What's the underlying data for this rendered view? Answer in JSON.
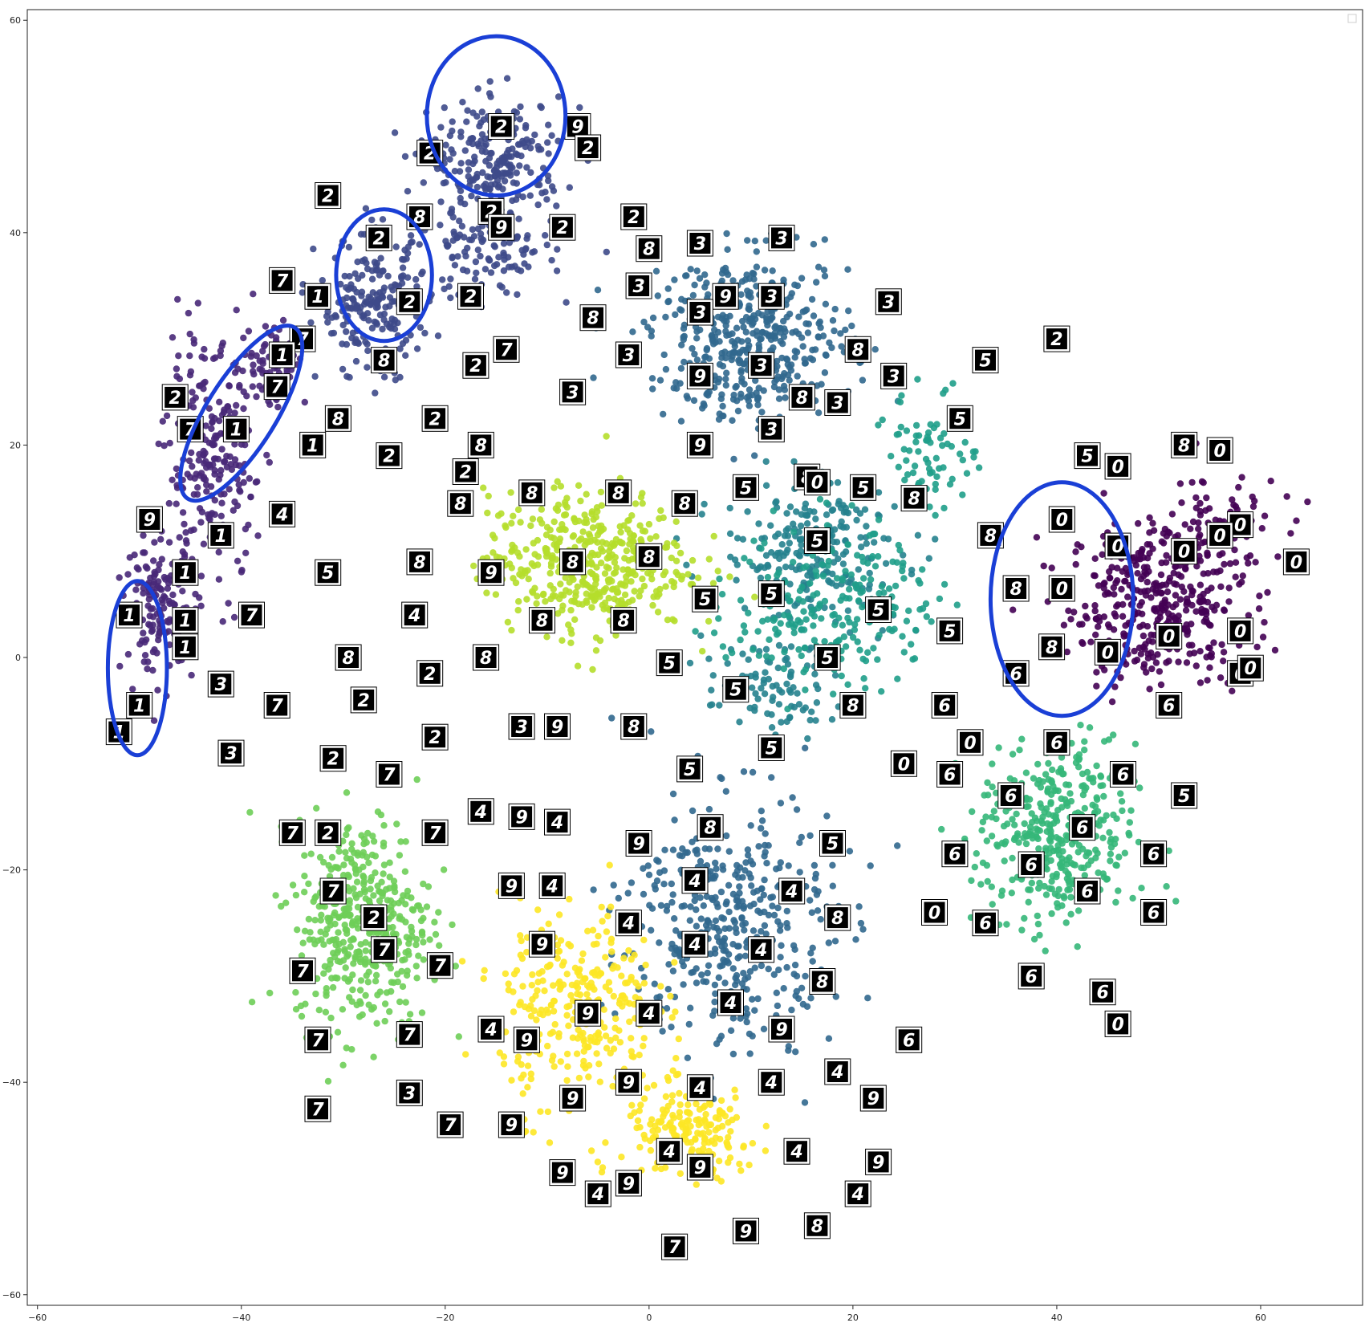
{
  "chart_data": {
    "type": "scatter",
    "title": "",
    "xlabel": "",
    "ylabel": "",
    "xlim": [
      -61,
      70
    ],
    "ylim": [
      -61,
      61
    ],
    "grid": false,
    "legend": "top-right (empty)",
    "xticks": [
      -60,
      -40,
      -20,
      0,
      20,
      40,
      60
    ],
    "yticks": [
      -60,
      -40,
      -20,
      0,
      20,
      40,
      60
    ],
    "xtick_labels": [
      "−60",
      "−40",
      "−20",
      "0",
      "20",
      "40",
      "60"
    ],
    "ytick_labels": [
      "−60",
      "−40",
      "−20",
      "0",
      "20",
      "40",
      "60"
    ],
    "colormap": [
      "#440154",
      "#482878",
      "#3e4a89",
      "#31688e",
      "#26828e",
      "#1f9e89",
      "#35b779",
      "#6ece58",
      "#b5de2b",
      "#fde725"
    ],
    "series": [
      {
        "color": "#440154",
        "clusters": [
          {
            "x": 50,
            "y": 5,
            "sx": 8,
            "sy": 7,
            "n": 380
          },
          {
            "x": 55,
            "y": 12,
            "sx": 6,
            "sy": 5,
            "n": 90
          }
        ]
      },
      {
        "color": "#482878",
        "clusters": [
          {
            "x": -43,
            "y": 18,
            "sx": 4,
            "sy": 10,
            "n": 230
          },
          {
            "x": -48,
            "y": 5,
            "sx": 3,
            "sy": 6,
            "n": 140
          },
          {
            "x": -37,
            "y": 28,
            "sx": 3,
            "sy": 4,
            "n": 70
          }
        ]
      },
      {
        "color": "#3e4a89",
        "clusters": [
          {
            "x": -15,
            "y": 47,
            "sx": 6,
            "sy": 5,
            "n": 230
          },
          {
            "x": -27,
            "y": 33,
            "sx": 5,
            "sy": 6,
            "n": 210
          },
          {
            "x": -16,
            "y": 38,
            "sx": 6,
            "sy": 4,
            "n": 110
          }
        ]
      },
      {
        "color": "#31688e",
        "clusters": [
          {
            "x": 10,
            "y": 30,
            "sx": 9,
            "sy": 7,
            "n": 440
          },
          {
            "x": 8,
            "y": -25,
            "sx": 9,
            "sy": 11,
            "n": 430
          }
        ]
      },
      {
        "color": "#26828e",
        "clusters": [
          {
            "x": 16,
            "y": 10,
            "sx": 8,
            "sy": 6,
            "n": 240
          },
          {
            "x": 12,
            "y": -3,
            "sx": 6,
            "sy": 4,
            "n": 90
          }
        ]
      },
      {
        "color": "#1f9e89",
        "clusters": [
          {
            "x": 18,
            "y": 5,
            "sx": 9,
            "sy": 7,
            "n": 230
          },
          {
            "x": 28,
            "y": 20,
            "sx": 4,
            "sy": 5,
            "n": 70
          }
        ]
      },
      {
        "color": "#35b779",
        "clusters": [
          {
            "x": 40,
            "y": -17,
            "sx": 7,
            "sy": 8,
            "n": 400
          }
        ]
      },
      {
        "color": "#6ece58",
        "clusters": [
          {
            "x": -28,
            "y": -25,
            "sx": 6,
            "sy": 9,
            "n": 440
          }
        ]
      },
      {
        "color": "#b5de2b",
        "clusters": [
          {
            "x": -6,
            "y": 9,
            "sx": 9,
            "sy": 6,
            "n": 450
          }
        ]
      },
      {
        "color": "#fde725",
        "clusters": [
          {
            "x": -7,
            "y": -33,
            "sx": 7,
            "sy": 9,
            "n": 300
          },
          {
            "x": 4,
            "y": -45,
            "sx": 6,
            "sy": 4,
            "n": 180
          }
        ]
      }
    ],
    "thumbnails": [
      {
        "x": -21.5,
        "y": 47.5,
        "label": "2"
      },
      {
        "x": -14.5,
        "y": 50,
        "label": "2"
      },
      {
        "x": -7,
        "y": 50,
        "label": "9"
      },
      {
        "x": -6,
        "y": 48,
        "label": "2"
      },
      {
        "x": -31.5,
        "y": 43.5,
        "label": "2"
      },
      {
        "x": -22.5,
        "y": 41.5,
        "label": "8"
      },
      {
        "x": -15.5,
        "y": 42,
        "label": "2"
      },
      {
        "x": -14.5,
        "y": 40.5,
        "label": "9"
      },
      {
        "x": -8.5,
        "y": 40.5,
        "label": "2"
      },
      {
        "x": -1.5,
        "y": 41.5,
        "label": "2"
      },
      {
        "x": -26.5,
        "y": 39.5,
        "label": "2"
      },
      {
        "x": -23.5,
        "y": 33.5,
        "label": "2"
      },
      {
        "x": -17.5,
        "y": 34,
        "label": "2"
      },
      {
        "x": -36,
        "y": 35.5,
        "label": "7"
      },
      {
        "x": -32.5,
        "y": 34,
        "label": "1"
      },
      {
        "x": -34,
        "y": 30,
        "label": "7"
      },
      {
        "x": -36,
        "y": 28.5,
        "label": "1"
      },
      {
        "x": -36.5,
        "y": 25.5,
        "label": "7"
      },
      {
        "x": -26,
        "y": 28,
        "label": "8"
      },
      {
        "x": -17,
        "y": 27.5,
        "label": "2"
      },
      {
        "x": -14,
        "y": 29,
        "label": "7"
      },
      {
        "x": -46.5,
        "y": 24.5,
        "label": "2"
      },
      {
        "x": -45,
        "y": 21.5,
        "label": "7"
      },
      {
        "x": -40.5,
        "y": 21.5,
        "label": "1"
      },
      {
        "x": -33,
        "y": 20,
        "label": "1"
      },
      {
        "x": -30.5,
        "y": 22.5,
        "label": "8"
      },
      {
        "x": -25.5,
        "y": 19,
        "label": "2"
      },
      {
        "x": -21,
        "y": 22.5,
        "label": "2"
      },
      {
        "x": -49,
        "y": 13,
        "label": "9"
      },
      {
        "x": -42,
        "y": 11.5,
        "label": "1"
      },
      {
        "x": -36,
        "y": 13.5,
        "label": "4"
      },
      {
        "x": -45.5,
        "y": 8,
        "label": "1"
      },
      {
        "x": -31.5,
        "y": 8,
        "label": "5"
      },
      {
        "x": -51,
        "y": 4,
        "label": "1"
      },
      {
        "x": -45.5,
        "y": 3.5,
        "label": "1"
      },
      {
        "x": -45.5,
        "y": 1,
        "label": "1"
      },
      {
        "x": -39,
        "y": 4,
        "label": "7"
      },
      {
        "x": -42,
        "y": -2.5,
        "label": "3"
      },
      {
        "x": -36.5,
        "y": -4.5,
        "label": "7"
      },
      {
        "x": -50,
        "y": -4.5,
        "label": "1"
      },
      {
        "x": -52,
        "y": -7,
        "label": "1"
      },
      {
        "x": -41,
        "y": -9,
        "label": "3"
      },
      {
        "x": -29.5,
        "y": 0,
        "label": "8"
      },
      {
        "x": -28,
        "y": -4,
        "label": "2"
      },
      {
        "x": -16.5,
        "y": 20,
        "label": "8"
      },
      {
        "x": -18,
        "y": 17.5,
        "label": "2"
      },
      {
        "x": -18.5,
        "y": 14.5,
        "label": "8"
      },
      {
        "x": -11.5,
        "y": 15.5,
        "label": "8"
      },
      {
        "x": -3,
        "y": 15.5,
        "label": "8"
      },
      {
        "x": 3.5,
        "y": 14.5,
        "label": "8"
      },
      {
        "x": -22.5,
        "y": 9,
        "label": "8"
      },
      {
        "x": -15.5,
        "y": 8,
        "label": "9"
      },
      {
        "x": -7.5,
        "y": 9,
        "label": "8"
      },
      {
        "x": 0,
        "y": 9.5,
        "label": "8"
      },
      {
        "x": -23,
        "y": 4,
        "label": "4"
      },
      {
        "x": -10.5,
        "y": 3.5,
        "label": "8"
      },
      {
        "x": -2.5,
        "y": 3.5,
        "label": "8"
      },
      {
        "x": -16,
        "y": 0,
        "label": "8"
      },
      {
        "x": -21.5,
        "y": -1.5,
        "label": "2"
      },
      {
        "x": -12.5,
        "y": -6.5,
        "label": "3"
      },
      {
        "x": -9,
        "y": -6.5,
        "label": "9"
      },
      {
        "x": -21,
        "y": -7.5,
        "label": "2"
      },
      {
        "x": -31,
        "y": -9.5,
        "label": "2"
      },
      {
        "x": -7.5,
        "y": 25,
        "label": "3"
      },
      {
        "x": -5.5,
        "y": 32,
        "label": "8"
      },
      {
        "x": -2,
        "y": 28.5,
        "label": "3"
      },
      {
        "x": -1,
        "y": 35,
        "label": "3"
      },
      {
        "x": 0,
        "y": 38.5,
        "label": "8"
      },
      {
        "x": 5,
        "y": 39,
        "label": "3"
      },
      {
        "x": 13,
        "y": 39.5,
        "label": "3"
      },
      {
        "x": 7.5,
        "y": 34,
        "label": "9"
      },
      {
        "x": 12,
        "y": 34,
        "label": "3"
      },
      {
        "x": 5,
        "y": 32.5,
        "label": "3"
      },
      {
        "x": 5,
        "y": 26.5,
        "label": "9"
      },
      {
        "x": 11,
        "y": 27.5,
        "label": "3"
      },
      {
        "x": 23.5,
        "y": 33.5,
        "label": "3"
      },
      {
        "x": 20.5,
        "y": 29,
        "label": "8"
      },
      {
        "x": 24,
        "y": 26.5,
        "label": "3"
      },
      {
        "x": 15,
        "y": 24.5,
        "label": "8"
      },
      {
        "x": 18.5,
        "y": 24,
        "label": "3"
      },
      {
        "x": 12,
        "y": 21.5,
        "label": "3"
      },
      {
        "x": 5,
        "y": 20,
        "label": "9"
      },
      {
        "x": 9.5,
        "y": 16,
        "label": "5"
      },
      {
        "x": 15.5,
        "y": 17,
        "label": "8"
      },
      {
        "x": 16.5,
        "y": 16.5,
        "label": "0"
      },
      {
        "x": 21,
        "y": 16,
        "label": "5"
      },
      {
        "x": 26,
        "y": 15,
        "label": "8"
      },
      {
        "x": 16.5,
        "y": 11,
        "label": "5"
      },
      {
        "x": 5.5,
        "y": 5.5,
        "label": "5"
      },
      {
        "x": 12,
        "y": 6,
        "label": "5"
      },
      {
        "x": 22.5,
        "y": 4.5,
        "label": "5"
      },
      {
        "x": 29.5,
        "y": 2.5,
        "label": "5"
      },
      {
        "x": 2,
        "y": -0.5,
        "label": "5"
      },
      {
        "x": 17.5,
        "y": 0,
        "label": "5"
      },
      {
        "x": 8.5,
        "y": -3,
        "label": "5"
      },
      {
        "x": 20,
        "y": -4.5,
        "label": "8"
      },
      {
        "x": -1.5,
        "y": -6.5,
        "label": "8"
      },
      {
        "x": 12,
        "y": -8.5,
        "label": "5"
      },
      {
        "x": 4,
        "y": -10.5,
        "label": "5"
      },
      {
        "x": 33,
        "y": 28,
        "label": "5"
      },
      {
        "x": 30.5,
        "y": 22.5,
        "label": "5"
      },
      {
        "x": 40,
        "y": 30,
        "label": "2"
      },
      {
        "x": 43,
        "y": 19,
        "label": "5"
      },
      {
        "x": 46,
        "y": 18,
        "label": "0"
      },
      {
        "x": 52.5,
        "y": 20,
        "label": "8"
      },
      {
        "x": 56,
        "y": 19.5,
        "label": "0"
      },
      {
        "x": 40.5,
        "y": 13,
        "label": "0"
      },
      {
        "x": 58,
        "y": 12.5,
        "label": "0"
      },
      {
        "x": 33.5,
        "y": 11.5,
        "label": "8"
      },
      {
        "x": 46,
        "y": 10.5,
        "label": "0"
      },
      {
        "x": 52.5,
        "y": 10,
        "label": "0"
      },
      {
        "x": 56,
        "y": 11.5,
        "label": "0"
      },
      {
        "x": 63.5,
        "y": 9,
        "label": "0"
      },
      {
        "x": 36,
        "y": 6.5,
        "label": "8"
      },
      {
        "x": 40.5,
        "y": 6.5,
        "label": "0"
      },
      {
        "x": 51,
        "y": 2,
        "label": "0"
      },
      {
        "x": 58,
        "y": 2.5,
        "label": "0"
      },
      {
        "x": 39.5,
        "y": 1,
        "label": "8"
      },
      {
        "x": 45,
        "y": 0.5,
        "label": "0"
      },
      {
        "x": 36,
        "y": -1.5,
        "label": "6"
      },
      {
        "x": 58,
        "y": -1.5,
        "label": "6"
      },
      {
        "x": 59,
        "y": -1,
        "label": "0"
      },
      {
        "x": 51,
        "y": -4.5,
        "label": "6"
      },
      {
        "x": 29,
        "y": -4.5,
        "label": "6"
      },
      {
        "x": 31.5,
        "y": -8,
        "label": "0"
      },
      {
        "x": 40,
        "y": -8,
        "label": "6"
      },
      {
        "x": 25,
        "y": -10,
        "label": "0"
      },
      {
        "x": 29.5,
        "y": -11,
        "label": "6"
      },
      {
        "x": 35.5,
        "y": -13,
        "label": "6"
      },
      {
        "x": 46.5,
        "y": -11,
        "label": "6"
      },
      {
        "x": 52.5,
        "y": -13,
        "label": "5"
      },
      {
        "x": 42.5,
        "y": -16,
        "label": "6"
      },
      {
        "x": 49.5,
        "y": -18.5,
        "label": "6"
      },
      {
        "x": 30,
        "y": -18.5,
        "label": "6"
      },
      {
        "x": 37.5,
        "y": -19.5,
        "label": "6"
      },
      {
        "x": 43,
        "y": -22,
        "label": "6"
      },
      {
        "x": 28,
        "y": -24,
        "label": "0"
      },
      {
        "x": 33,
        "y": -25,
        "label": "6"
      },
      {
        "x": 49.5,
        "y": -24,
        "label": "6"
      },
      {
        "x": 37.5,
        "y": -30,
        "label": "6"
      },
      {
        "x": 44.5,
        "y": -31.5,
        "label": "6"
      },
      {
        "x": 46,
        "y": -34.5,
        "label": "0"
      },
      {
        "x": -25.5,
        "y": -11,
        "label": "7"
      },
      {
        "x": -35,
        "y": -16.5,
        "label": "7"
      },
      {
        "x": -31.5,
        "y": -16.5,
        "label": "2"
      },
      {
        "x": -21,
        "y": -16.5,
        "label": "7"
      },
      {
        "x": -16.5,
        "y": -14.5,
        "label": "4"
      },
      {
        "x": -12.5,
        "y": -15,
        "label": "9"
      },
      {
        "x": -9,
        "y": -15.5,
        "label": "4"
      },
      {
        "x": -1,
        "y": -17.5,
        "label": "9"
      },
      {
        "x": 6,
        "y": -16,
        "label": "8"
      },
      {
        "x": 18,
        "y": -17.5,
        "label": "5"
      },
      {
        "x": -31,
        "y": -22,
        "label": "7"
      },
      {
        "x": -27,
        "y": -24.5,
        "label": "2"
      },
      {
        "x": -26,
        "y": -27.5,
        "label": "7"
      },
      {
        "x": -13.5,
        "y": -21.5,
        "label": "9"
      },
      {
        "x": -9.5,
        "y": -21.5,
        "label": "4"
      },
      {
        "x": 4.5,
        "y": -21,
        "label": "4"
      },
      {
        "x": 14,
        "y": -22,
        "label": "4"
      },
      {
        "x": 18.5,
        "y": -24.5,
        "label": "8"
      },
      {
        "x": -2,
        "y": -25,
        "label": "4"
      },
      {
        "x": -34,
        "y": -29.5,
        "label": "7"
      },
      {
        "x": -20.5,
        "y": -29,
        "label": "7"
      },
      {
        "x": -10.5,
        "y": -27,
        "label": "9"
      },
      {
        "x": 4.5,
        "y": -27,
        "label": "4"
      },
      {
        "x": 11,
        "y": -27.5,
        "label": "4"
      },
      {
        "x": 17,
        "y": -30.5,
        "label": "8"
      },
      {
        "x": -6,
        "y": -33.5,
        "label": "9"
      },
      {
        "x": 0,
        "y": -33.5,
        "label": "4"
      },
      {
        "x": 8,
        "y": -32.5,
        "label": "4"
      },
      {
        "x": 13,
        "y": -35,
        "label": "9"
      },
      {
        "x": -15.5,
        "y": -35,
        "label": "4"
      },
      {
        "x": -12,
        "y": -36,
        "label": "9"
      },
      {
        "x": -23.5,
        "y": -35.5,
        "label": "7"
      },
      {
        "x": -32.5,
        "y": -36,
        "label": "7"
      },
      {
        "x": 25.5,
        "y": -36,
        "label": "6"
      },
      {
        "x": -2,
        "y": -40,
        "label": "9"
      },
      {
        "x": 5,
        "y": -40.5,
        "label": "4"
      },
      {
        "x": 12,
        "y": -40,
        "label": "4"
      },
      {
        "x": 18.5,
        "y": -39,
        "label": "4"
      },
      {
        "x": 22,
        "y": -41.5,
        "label": "9"
      },
      {
        "x": -7.5,
        "y": -41.5,
        "label": "9"
      },
      {
        "x": -23.5,
        "y": -41,
        "label": "3"
      },
      {
        "x": -32.5,
        "y": -42.5,
        "label": "7"
      },
      {
        "x": -19.5,
        "y": -44,
        "label": "7"
      },
      {
        "x": -13.5,
        "y": -44,
        "label": "9"
      },
      {
        "x": 2,
        "y": -46.5,
        "label": "4"
      },
      {
        "x": 5,
        "y": -48,
        "label": "9"
      },
      {
        "x": 14.5,
        "y": -46.5,
        "label": "4"
      },
      {
        "x": 22.5,
        "y": -47.5,
        "label": "9"
      },
      {
        "x": -8.5,
        "y": -48.5,
        "label": "9"
      },
      {
        "x": -5,
        "y": -50.5,
        "label": "4"
      },
      {
        "x": -2,
        "y": -49.5,
        "label": "9"
      },
      {
        "x": 20.5,
        "y": -50.5,
        "label": "4"
      },
      {
        "x": 9.5,
        "y": -54,
        "label": "9"
      },
      {
        "x": 16.5,
        "y": -53.5,
        "label": "8"
      },
      {
        "x": 2.5,
        "y": -55.5,
        "label": "7"
      }
    ],
    "annotations": [
      {
        "type": "hand-drawn-ellipse",
        "color": "#1a3fd6",
        "cx": -15,
        "cy": 51,
        "rx": 6.8,
        "ry": 7.5
      },
      {
        "type": "hand-drawn-ellipse",
        "color": "#1a3fd6",
        "cx": -26,
        "cy": 36,
        "rx": 4.7,
        "ry": 6.2
      },
      {
        "type": "hand-drawn-ellipse",
        "color": "#1a3fd6",
        "cx": -40,
        "cy": 23,
        "rx": 3.4,
        "ry": 9.5,
        "rotate": 32
      },
      {
        "type": "hand-drawn-ellipse",
        "color": "#1a3fd6",
        "cx": -50.2,
        "cy": -1,
        "rx": 2.9,
        "ry": 8.2
      },
      {
        "type": "hand-drawn-ellipse",
        "color": "#1a3fd6",
        "cx": 40.5,
        "cy": 5.5,
        "rx": 7,
        "ry": 11
      }
    ]
  }
}
